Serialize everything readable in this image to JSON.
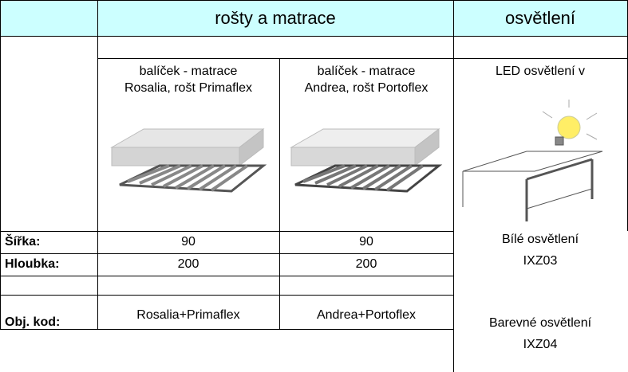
{
  "header": {
    "group1": "rošty a matrace",
    "group2": "osvětlení"
  },
  "row_labels": {
    "width": "Šířka:",
    "depth": "Hloubka:",
    "code": "Obj. kod:"
  },
  "products": [
    {
      "title_line1": "balíček - matrace",
      "title_line2": "Rosalia, rošt Primaflex",
      "width": 90,
      "depth": 200,
      "code": "Rosalia+Primaflex"
    },
    {
      "title_line1": "balíček - matrace",
      "title_line2": "Andrea, rošt Portoflex",
      "width": 90,
      "depth": 200,
      "code": "Andrea+Portoflex"
    }
  ],
  "lighting": {
    "title": "LED osvětlení v",
    "options": [
      {
        "name": "Bílé osvětlení",
        "code": "IXZ03"
      },
      {
        "name": "Barevné osvětlení",
        "code": "IXZ04"
      }
    ]
  }
}
